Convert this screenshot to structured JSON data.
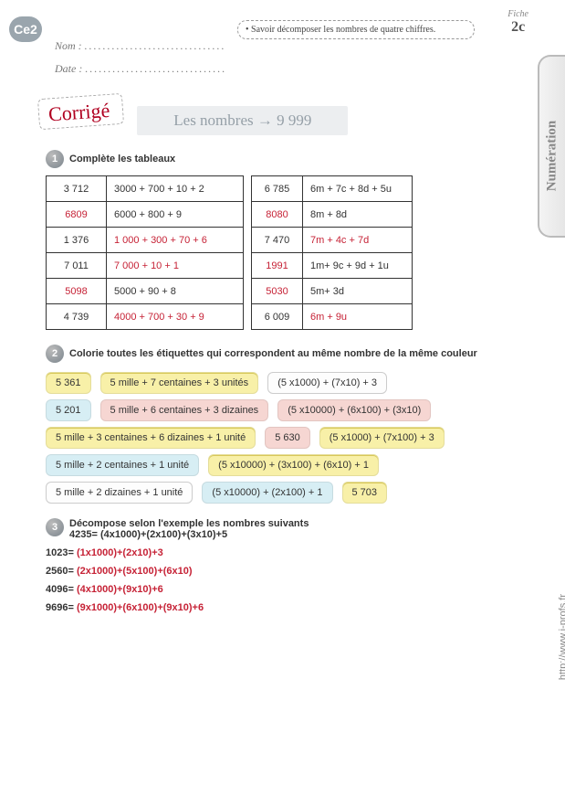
{
  "badge": "Ce2",
  "fiche": {
    "label": "Fiche",
    "num": "2c"
  },
  "objective": "• Savoir décomposer les nombres de quatre chiffres.",
  "form": {
    "nom": "Nom :",
    "date": "Date :",
    "dots": "..............................."
  },
  "sidebar": "Numération",
  "url": "http://www.i-profs.fr",
  "corrige": "Corrigé",
  "title": "Les nombres → 9 999",
  "q1": {
    "label": "Complète les tableaux"
  },
  "table1": [
    {
      "n": "3 712",
      "d": "3000 + 700 + 10 + 2",
      "nAns": false,
      "dAns": false
    },
    {
      "n": "6809",
      "d": "6000 + 800 + 9",
      "nAns": true,
      "dAns": false
    },
    {
      "n": "1 376",
      "d": "1 000 + 300 + 70 + 6",
      "nAns": false,
      "dAns": true
    },
    {
      "n": "7 011",
      "d": "7 000 + 10 + 1",
      "nAns": false,
      "dAns": true
    },
    {
      "n": "5098",
      "d": "5000 + 90 + 8",
      "nAns": true,
      "dAns": false
    },
    {
      "n": "4 739",
      "d": "4000 + 700 + 30 + 9",
      "nAns": false,
      "dAns": true
    }
  ],
  "table2": [
    {
      "n": "6 785",
      "d": "6m + 7c + 8d + 5u",
      "nAns": false,
      "dAns": false
    },
    {
      "n": "8080",
      "d": "8m + 8d",
      "nAns": true,
      "dAns": false
    },
    {
      "n": "7 470",
      "d": "7m + 4c + 7d",
      "nAns": false,
      "dAns": true
    },
    {
      "n": "1991",
      "d": "1m+ 9c + 9d + 1u",
      "nAns": true,
      "dAns": false
    },
    {
      "n": "5030",
      "d": "5m+ 3d",
      "nAns": true,
      "dAns": false
    },
    {
      "n": "6 009",
      "d": "6m + 9u",
      "nAns": false,
      "dAns": true
    }
  ],
  "q2": {
    "label": "Colorie toutes les étiquettes qui correspondent au même nombre de la même couleur"
  },
  "chips": [
    [
      {
        "t": "5 361",
        "c": "c-yellow"
      },
      {
        "t": "5 mille + 7 centaines + 3 unités",
        "c": "c-yellow"
      },
      {
        "t": "(5 x1000) + (7x10) + 3",
        "c": "c-white"
      }
    ],
    [
      {
        "t": "5 201",
        "c": "c-blue"
      },
      {
        "t": "5 mille + 6 centaines + 3 dizaines",
        "c": "c-pink"
      },
      {
        "t": "(5 x10000) + (6x100) + (3x10)",
        "c": "c-pink"
      }
    ],
    [
      {
        "t": "5 mille + 3 centaines + 6 dizaines + 1 unité",
        "c": "c-yellow"
      },
      {
        "t": "5 630",
        "c": "c-pink"
      },
      {
        "t": "(5 x1000) + (7x100) + 3",
        "c": "c-yellow"
      }
    ],
    [
      {
        "t": "5 mille + 2 centaines + 1 unité",
        "c": "c-blue"
      },
      {
        "t": "(5 x10000) + (3x100) + (6x10) + 1",
        "c": "c-yellow"
      }
    ],
    [
      {
        "t": "5 mille + 2 dizaines + 1 unité",
        "c": "c-white"
      },
      {
        "t": "(5 x10000) + (2x100) + 1",
        "c": "c-blue"
      },
      {
        "t": "5 703",
        "c": "c-yellow"
      }
    ]
  ],
  "q3": {
    "label": "Décompose selon l'exemple les nombres suivants",
    "example": "4235= (4x1000)+(2x100)+(3x10)+5",
    "lines": [
      {
        "p": "1023= ",
        "a": "(1x1000)+(2x10)+3"
      },
      {
        "p": "2560= ",
        "a": "(2x1000)+(5x100)+(6x10)"
      },
      {
        "p": "4096= ",
        "a": "(4x1000)+(9x10)+6"
      },
      {
        "p": "9696= ",
        "a": "(9x1000)+(6x100)+(9x10)+6"
      }
    ]
  }
}
